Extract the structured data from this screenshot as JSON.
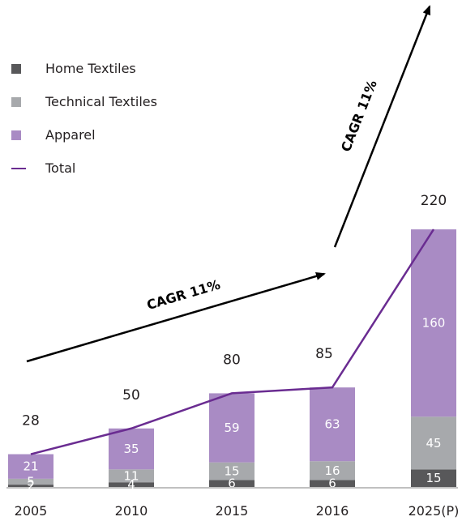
{
  "chart_data": {
    "type": "bar",
    "stacked": true,
    "categories": [
      "2005",
      "2010",
      "2015",
      "2016",
      "2025(P)"
    ],
    "series": [
      {
        "name": "Home Textiles",
        "values": [
          2,
          4,
          6,
          6,
          15
        ],
        "color": "#58585a"
      },
      {
        "name": "Technical Textiles",
        "values": [
          5,
          11,
          15,
          16,
          45
        ],
        "color": "#a7a9ac"
      },
      {
        "name": "Apparel",
        "values": [
          21,
          35,
          59,
          63,
          160
        ],
        "color": "#a98bc4"
      }
    ],
    "line_series": {
      "name": "Total",
      "values": [
        28,
        50,
        80,
        85,
        220
      ],
      "color": "#6a2c91"
    },
    "annotations": [
      {
        "text": "CAGR 11%",
        "from": "2005",
        "to": "2016"
      },
      {
        "text": "CAGR 11%",
        "from": "2016",
        "to": "2025(P)"
      }
    ],
    "legend_position": "top-left",
    "grid": false,
    "ylim": [
      0,
      220
    ],
    "title": "",
    "xlabel": "",
    "ylabel": ""
  }
}
